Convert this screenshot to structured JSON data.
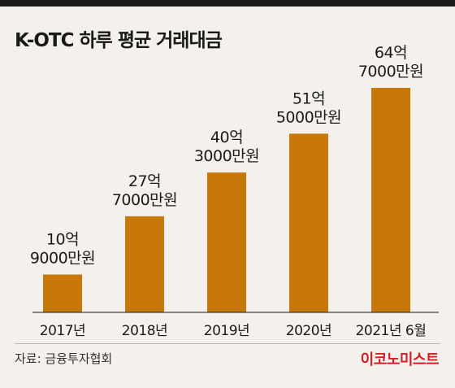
{
  "title": "K-OTC 하루 평균 거래대금",
  "source": "자료: 금융투자협회",
  "brand": "이코노미스트",
  "colors": {
    "bar": "#c8780a",
    "text": "#1a1a1a",
    "brand": "#d11f26",
    "background": "#f4f1ec"
  },
  "chart_data": {
    "type": "bar",
    "title": "K-OTC 하루 평균 거래대금",
    "xlabel": "",
    "ylabel": "",
    "unit": "만원",
    "categories": [
      "2017년",
      "2018년",
      "2019년",
      "2020년",
      "2021년 6월"
    ],
    "values": [
      109000,
      277000,
      403000,
      515000,
      647000
    ],
    "data_labels": [
      [
        "10억",
        "9000만원"
      ],
      [
        "27억",
        "7000만원"
      ],
      [
        "40억",
        "3000만원"
      ],
      [
        "51억",
        "5000만원"
      ],
      [
        "64억",
        "7000만원"
      ]
    ],
    "ylim": [
      0,
      700000
    ],
    "grid": false,
    "legend": "none"
  }
}
